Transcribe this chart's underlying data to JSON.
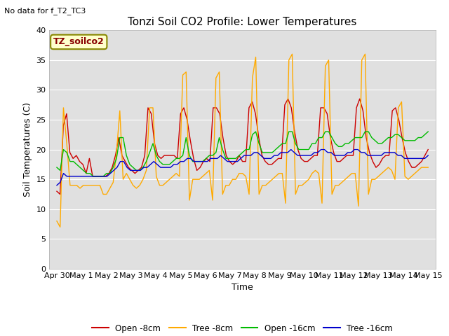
{
  "title": "Tonzi Soil CO2 Profile: Lower Temperatures",
  "subtitle": "No data for f_T2_TC3",
  "xlabel": "Time",
  "ylabel": "Soil Temperatures (C)",
  "ylim": [
    0,
    40
  ],
  "xlim": [
    -0.3,
    15.3
  ],
  "legend_label": "TZ_soilco2",
  "background_color": "#e8e8e8",
  "plot_area_color": "#e0e0e0",
  "grid_color": "#ffffff",
  "series_colors": {
    "open_8cm": "#cc0000",
    "tree_8cm": "#ffaa00",
    "open_16cm": "#00bb00",
    "tree_16cm": "#0000cc"
  },
  "x_tick_labels": [
    "Apr 30",
    "May 1",
    "May 2",
    "May 3",
    "May 4",
    "May 5",
    "May 6",
    "May 7",
    "May 8",
    "May 9",
    "May 10",
    "May 11",
    "May 12",
    "May 13",
    "May 14",
    "May 15"
  ],
  "x_tick_positions": [
    0,
    1,
    2,
    3,
    4,
    5,
    6,
    7,
    8,
    9,
    10,
    11,
    12,
    13,
    14,
    15
  ],
  "yticks": [
    0,
    5,
    10,
    15,
    20,
    25,
    30,
    35,
    40
  ],
  "open_8cm": [
    13,
    12.5,
    24,
    26,
    19.5,
    18.5,
    19,
    18,
    17.5,
    16,
    18.5,
    15.5,
    15.5,
    15.5,
    15.5,
    15.5,
    16,
    17,
    19,
    22,
    19,
    18,
    17,
    16.5,
    16,
    16.5,
    17,
    19,
    27,
    26,
    21,
    19,
    18.5,
    19,
    19,
    19,
    19,
    18.5,
    26,
    27,
    25,
    21.5,
    18.5,
    16.5,
    17,
    18,
    18.5,
    18,
    27,
    27,
    26,
    22,
    19,
    18,
    17.5,
    18,
    19,
    18,
    18,
    27,
    28,
    26,
    22,
    19,
    18,
    17.5,
    17.5,
    18,
    18.5,
    18.5,
    27.5,
    28.5,
    27,
    23,
    20,
    18.5,
    18,
    18,
    18.5,
    19,
    19,
    27,
    27,
    26,
    22,
    19.5,
    18,
    18,
    18.5,
    19,
    19,
    19,
    27,
    28.5,
    26.5,
    22,
    19.5,
    18,
    17,
    17.5,
    18.5,
    19,
    19,
    26.5,
    27,
    25,
    22,
    19.5,
    18,
    17,
    17,
    17.5,
    18,
    19,
    20
  ],
  "tree_8cm": [
    8,
    7,
    27,
    21,
    14,
    14,
    14,
    13.5,
    14,
    14,
    14,
    14,
    14,
    14,
    12.5,
    12.5,
    13.5,
    14.5,
    19.5,
    26.5,
    15,
    16,
    15,
    14,
    13.5,
    14,
    15,
    16.5,
    27,
    27,
    15.5,
    14,
    14,
    14.5,
    15,
    15.5,
    16,
    15.5,
    32.5,
    33,
    11.5,
    15,
    15,
    15,
    15.5,
    16,
    16.5,
    11.5,
    32,
    33,
    12.5,
    14,
    14,
    15,
    15,
    16,
    16,
    15.5,
    12.5,
    32,
    35.5,
    12.5,
    14,
    14,
    14.5,
    15,
    15.5,
    16,
    16,
    11,
    35,
    36,
    12.5,
    14,
    14,
    14.5,
    15,
    16,
    16.5,
    16,
    11,
    34,
    35,
    12.5,
    14,
    14,
    14.5,
    15,
    15.5,
    16,
    16,
    10.5,
    35,
    36,
    12.5,
    15,
    15,
    15.5,
    16,
    16.5,
    17,
    16.5,
    15,
    27,
    28,
    15.5,
    15,
    15.5,
    16,
    16.5,
    17,
    17,
    17
  ],
  "open_16cm": [
    17,
    16.5,
    20,
    19.5,
    18,
    18,
    17.5,
    17,
    16.5,
    16,
    16,
    15.5,
    15.5,
    15.5,
    15.5,
    16,
    16,
    17,
    18.5,
    22,
    22,
    19,
    17.5,
    17,
    16.5,
    16.5,
    17,
    18,
    19.5,
    21,
    19,
    18,
    17.5,
    17.5,
    17.5,
    18,
    18.5,
    18.5,
    19,
    22,
    19,
    18,
    18,
    18,
    18,
    18.5,
    19,
    19,
    19.5,
    22,
    20,
    18.5,
    18.5,
    18.5,
    18.5,
    19,
    19.5,
    20,
    20,
    22.5,
    23,
    21,
    19.5,
    19.5,
    19.5,
    19.5,
    20,
    20.5,
    21,
    21,
    23,
    23,
    21,
    20,
    20,
    20,
    20,
    21,
    21,
    22,
    22,
    23,
    23,
    22,
    21,
    20.5,
    20.5,
    21,
    21,
    21.5,
    22,
    22,
    22,
    23,
    23,
    22,
    21.5,
    21,
    21,
    21.5,
    22,
    22,
    22.5,
    22.5,
    22,
    21.5,
    21.5,
    21.5,
    21.5,
    22,
    22,
    22.5,
    23
  ],
  "tree_16cm": [
    14,
    14.5,
    16,
    15.5,
    15.5,
    15.5,
    15.5,
    15.5,
    15.5,
    15.5,
    15.5,
    15.5,
    15.5,
    15.5,
    15.5,
    15.5,
    16,
    16.5,
    17,
    18,
    18,
    17,
    16.5,
    16.5,
    16.5,
    16.5,
    17,
    17,
    17.5,
    18,
    17.5,
    17,
    17,
    17,
    17,
    17.5,
    17.5,
    18,
    18,
    18.5,
    18.5,
    18,
    18,
    18,
    18,
    18,
    18.5,
    18.5,
    18.5,
    19,
    18.5,
    18,
    18,
    18,
    18,
    18.5,
    19,
    19,
    19,
    19.5,
    19.5,
    19,
    18.5,
    18.5,
    18.5,
    19,
    19,
    19.5,
    19.5,
    19.5,
    20,
    19.5,
    19,
    19,
    19,
    19,
    19,
    19.5,
    19.5,
    20,
    20,
    19.5,
    19.5,
    19,
    19,
    19,
    19,
    19.5,
    19.5,
    20,
    20,
    19.5,
    19.5,
    19,
    19,
    19,
    19,
    19,
    19.5,
    19.5,
    19.5,
    19.5,
    19,
    19,
    18.5,
    18.5,
    18.5,
    18.5,
    18.5,
    18.5,
    18.5,
    19
  ]
}
